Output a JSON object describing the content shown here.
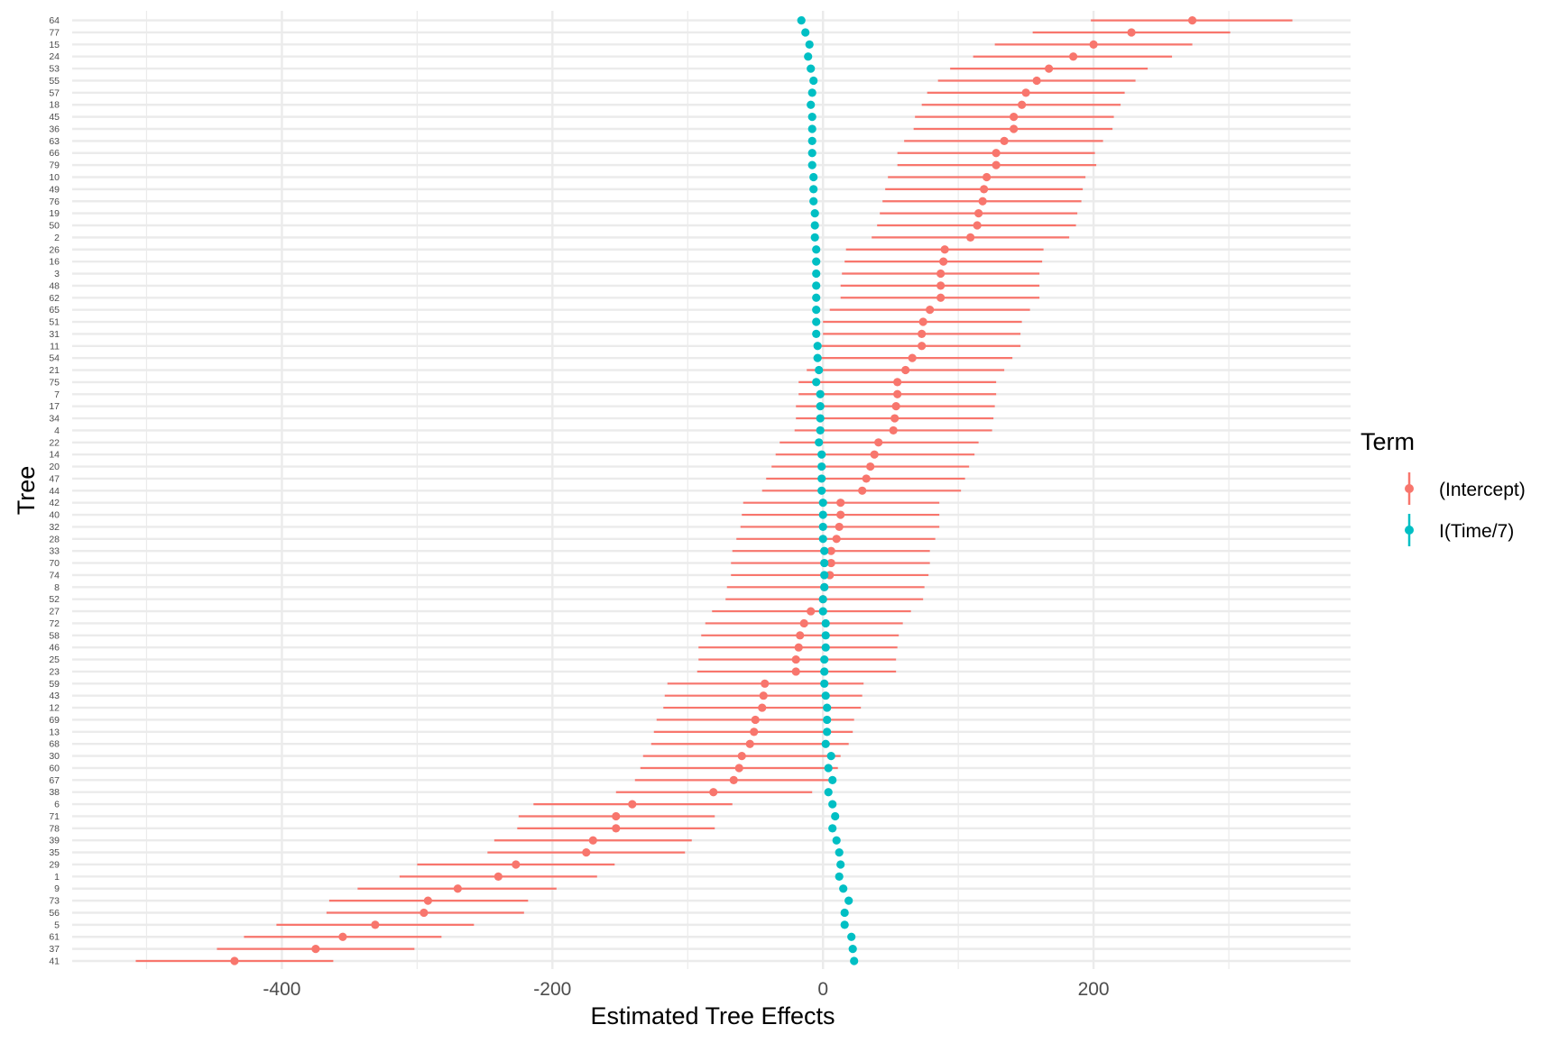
{
  "chart_data": {
    "type": "scatter",
    "subtype": "forest-plot-with-intervals",
    "title": "",
    "xlabel": "Estimated Tree Effects",
    "ylabel": "Tree",
    "xlim": [
      -555,
      390
    ],
    "x_ticks": [
      -400,
      -200,
      0,
      200
    ],
    "x_tick_labels": [
      "-400",
      "-200",
      "0",
      "200"
    ],
    "grid": true,
    "theme": "minimal",
    "legend": {
      "title": "Term",
      "position": "right",
      "entries": [
        "(Intercept)",
        "I(Time/7)"
      ]
    },
    "colors": {
      "(Intercept)": "#F8766D",
      "I(Time/7)": "#00BFC4"
    },
    "trees": [
      "64",
      "77",
      "15",
      "24",
      "53",
      "55",
      "57",
      "18",
      "45",
      "36",
      "63",
      "66",
      "79",
      "10",
      "49",
      "76",
      "19",
      "50",
      "2",
      "26",
      "16",
      "3",
      "48",
      "62",
      "65",
      "51",
      "31",
      "11",
      "54",
      "21",
      "75",
      "7",
      "17",
      "34",
      "4",
      "22",
      "14",
      "20",
      "47",
      "44",
      "42",
      "40",
      "32",
      "28",
      "33",
      "70",
      "74",
      "8",
      "52",
      "27",
      "72",
      "58",
      "46",
      "25",
      "23",
      "59",
      "43",
      "12",
      "69",
      "13",
      "68",
      "30",
      "60",
      "67",
      "38",
      "6",
      "71",
      "78",
      "39",
      "35",
      "29",
      "1",
      "9",
      "73",
      "56",
      "5",
      "61",
      "37",
      "41"
    ],
    "series": [
      {
        "name": "(Intercept)",
        "values": [
          273,
          228,
          200,
          185,
          167,
          158,
          150,
          147,
          141,
          141,
          134,
          128,
          128,
          121,
          119,
          118,
          115,
          114,
          109,
          90,
          89,
          87,
          87,
          87,
          79,
          74,
          73,
          73,
          66,
          61,
          55,
          55,
          54,
          53,
          52,
          41,
          38,
          35,
          32,
          29,
          13,
          13,
          12,
          10,
          6,
          6,
          5,
          1,
          0,
          -9,
          -14,
          -17,
          -18,
          -20,
          -20,
          -43,
          -44,
          -45,
          -50,
          -51,
          -54,
          -60,
          -62,
          -66,
          -81,
          -141,
          -153,
          -153,
          -170,
          -175,
          -227,
          -240,
          -270,
          -292,
          -295,
          -331,
          -355,
          -375,
          -435
        ],
        "lower": [
          198,
          155,
          127,
          111,
          94,
          85,
          77,
          73,
          68,
          67,
          60,
          55,
          55,
          48,
          46,
          44,
          42,
          40,
          36,
          17,
          16,
          14,
          13,
          13,
          5,
          0,
          0,
          -1,
          -7,
          -12,
          -18,
          -18,
          -20,
          -20,
          -21,
          -32,
          -35,
          -38,
          -42,
          -45,
          -59,
          -60,
          -61,
          -64,
          -67,
          -68,
          -68,
          -71,
          -72,
          -82,
          -87,
          -90,
          -92,
          -92,
          -93,
          -115,
          -117,
          -118,
          -123,
          -125,
          -127,
          -133,
          -135,
          -139,
          -153,
          -214,
          -225,
          -226,
          -243,
          -248,
          -300,
          -313,
          -344,
          -365,
          -367,
          -404,
          -428,
          -448,
          -508
        ],
        "upper": [
          347,
          301,
          273,
          258,
          240,
          231,
          223,
          220,
          215,
          214,
          207,
          201,
          202,
          194,
          192,
          191,
          188,
          187,
          182,
          163,
          162,
          160,
          160,
          160,
          153,
          147,
          146,
          146,
          140,
          134,
          128,
          128,
          127,
          126,
          125,
          115,
          112,
          108,
          105,
          102,
          86,
          86,
          86,
          83,
          79,
          79,
          78,
          75,
          74,
          65,
          59,
          56,
          55,
          54,
          54,
          30,
          29,
          28,
          23,
          22,
          19,
          13,
          11,
          8,
          -8,
          -67,
          -80,
          -80,
          -97,
          -102,
          -154,
          -167,
          -197,
          -218,
          -221,
          -258,
          -282,
          -302,
          -362
        ]
      },
      {
        "name": "I(Time/7)",
        "values": [
          -16,
          -13,
          -10,
          -11,
          -9,
          -7,
          -8,
          -9,
          -8,
          -8,
          -8,
          -8,
          -8,
          -7,
          -7,
          -7,
          -6,
          -6,
          -6,
          -5,
          -5,
          -5,
          -5,
          -5,
          -5,
          -5,
          -5,
          -4,
          -4,
          -3,
          -5,
          -2,
          -2,
          -2,
          -2,
          -3,
          -1,
          -1,
          -1,
          -1,
          0,
          0,
          0,
          0,
          1,
          1,
          1,
          1,
          0,
          0,
          2,
          2,
          2,
          1,
          1,
          1,
          2,
          3,
          3,
          3,
          2,
          6,
          4,
          7,
          4,
          7,
          9,
          7,
          10,
          12,
          13,
          12,
          15,
          19,
          16,
          16,
          21,
          22,
          23
        ]
      }
    ]
  }
}
